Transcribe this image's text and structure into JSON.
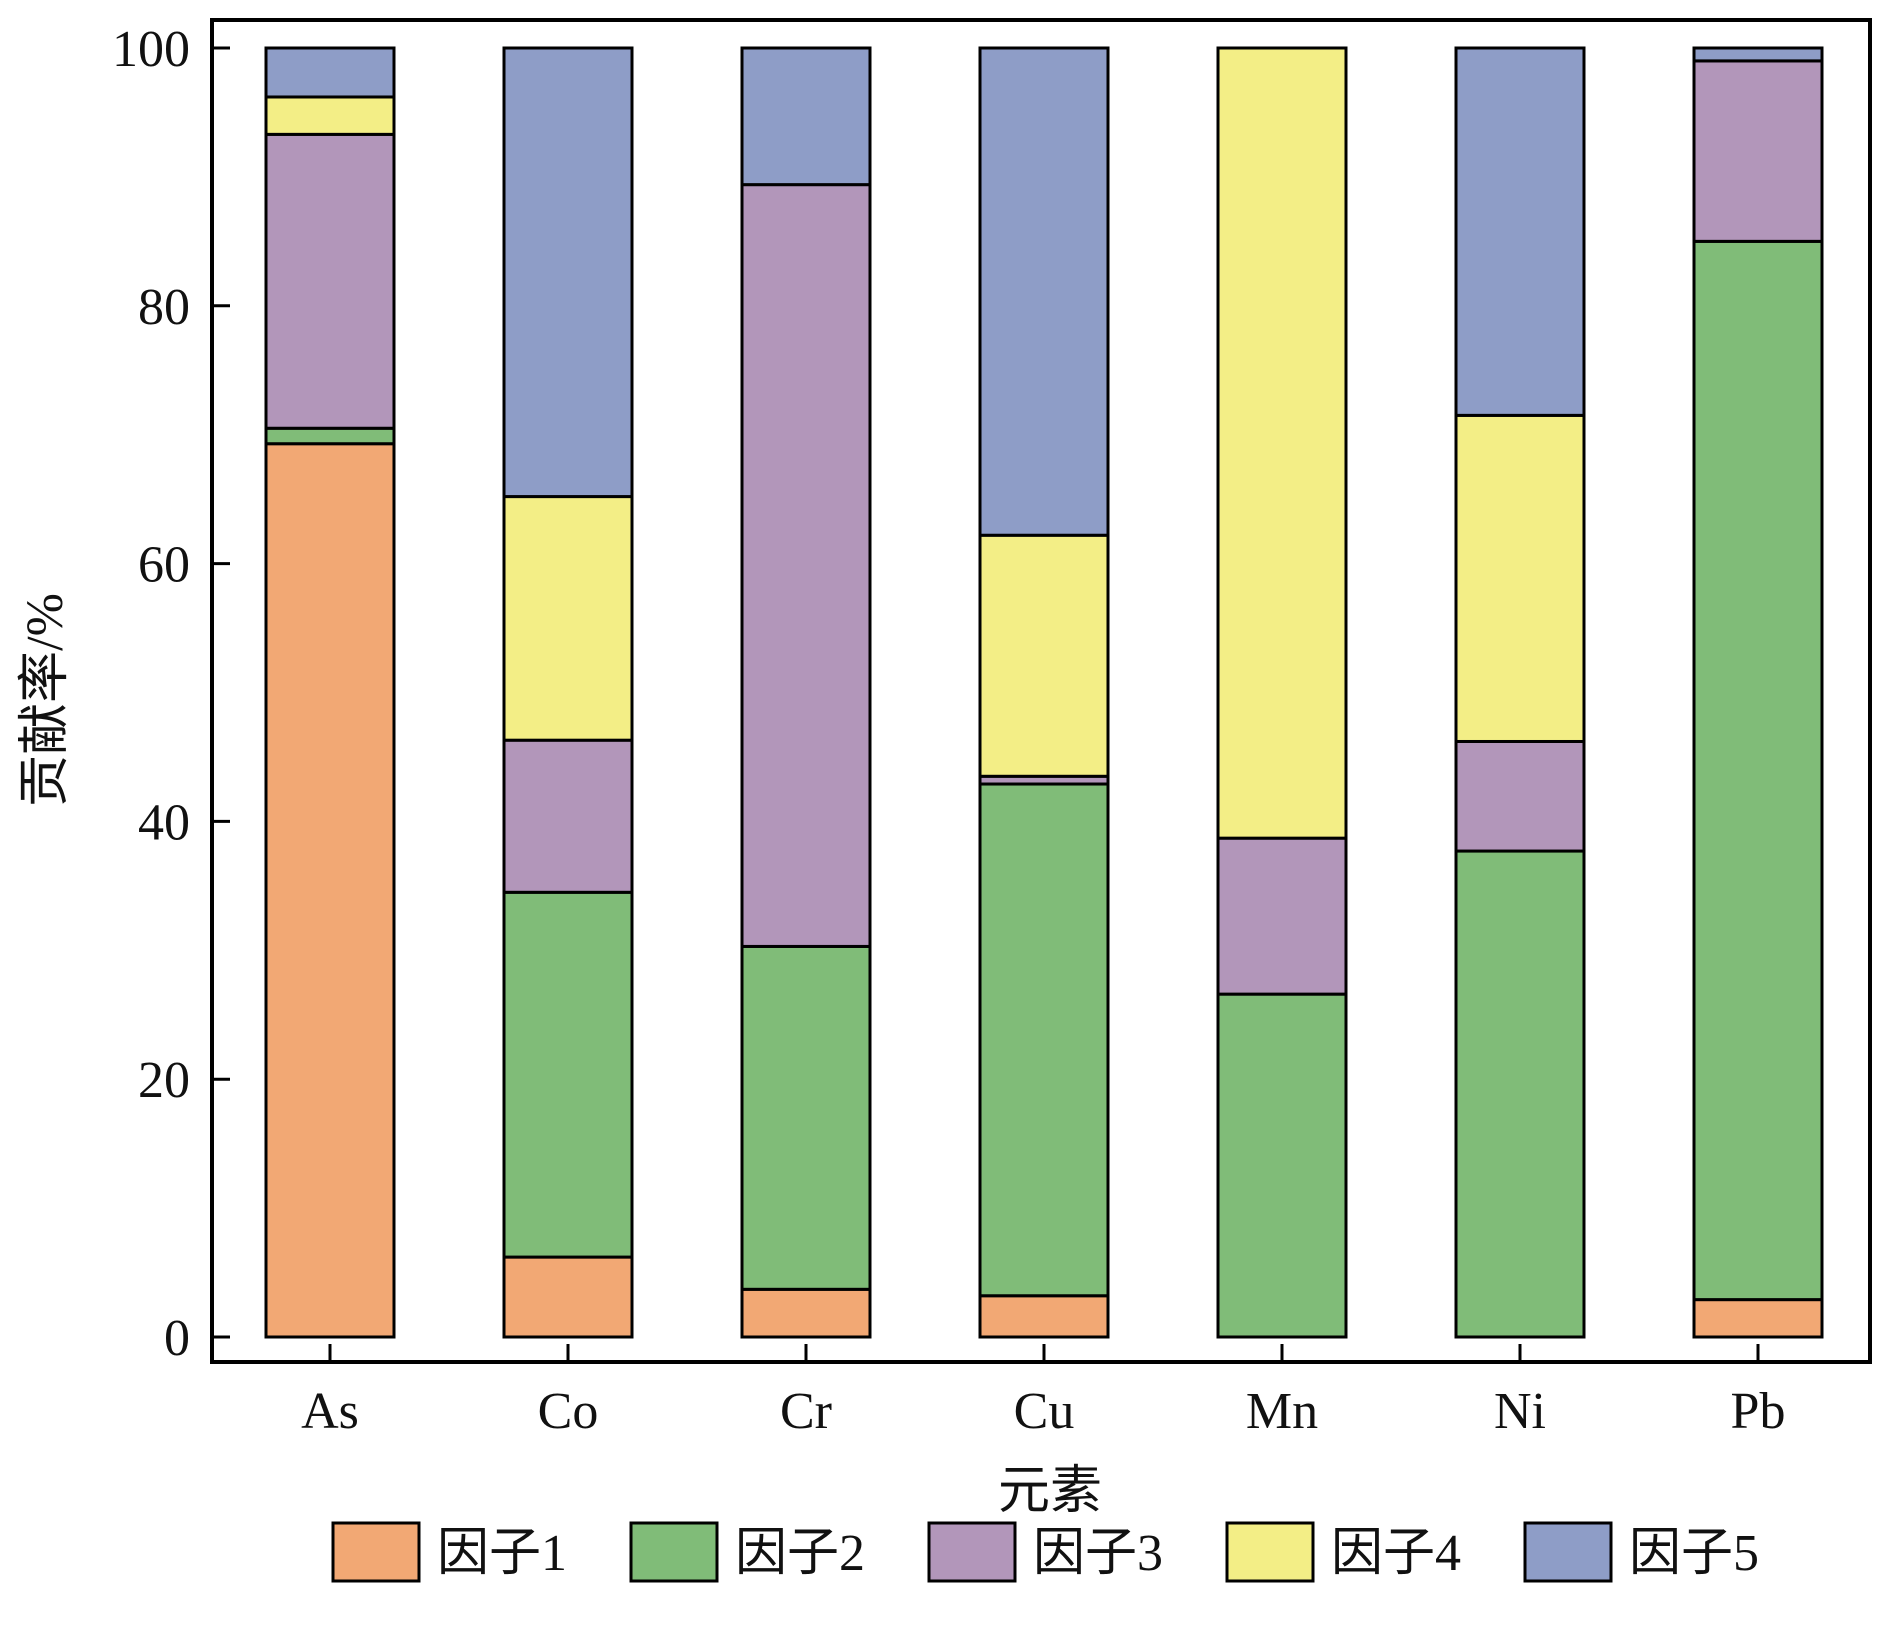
{
  "chart_data": {
    "type": "bar",
    "stacked": true,
    "xlabel": "元素",
    "ylabel": "贡献率/%",
    "ylim": [
      0,
      100
    ],
    "yticks": [
      0,
      20,
      40,
      60,
      80,
      100
    ],
    "grid": false,
    "legend_position": "bottom",
    "categories": [
      "As",
      "Co",
      "Cr",
      "Cu",
      "Mn",
      "Ni",
      "Pb"
    ],
    "series": [
      {
        "name": "因子1",
        "color": "#F2A874",
        "values": [
          69.3,
          6.2,
          3.7,
          3.2,
          0.0,
          0.0,
          2.9
        ]
      },
      {
        "name": "因子2",
        "color": "#80BC78",
        "values": [
          1.2,
          28.3,
          26.6,
          39.7,
          26.6,
          37.7,
          82.1
        ]
      },
      {
        "name": "因子3",
        "color": "#B296BA",
        "values": [
          22.8,
          11.8,
          59.1,
          0.6,
          12.1,
          8.5,
          14.0
        ]
      },
      {
        "name": "因子4",
        "color": "#F3EE86",
        "values": [
          2.9,
          18.9,
          0.0,
          18.7,
          61.3,
          25.3,
          0.0
        ]
      },
      {
        "name": "因子5",
        "color": "#8E9DC7",
        "values": [
          3.8,
          34.8,
          10.6,
          37.8,
          0.0,
          28.5,
          1.0
        ]
      }
    ]
  }
}
